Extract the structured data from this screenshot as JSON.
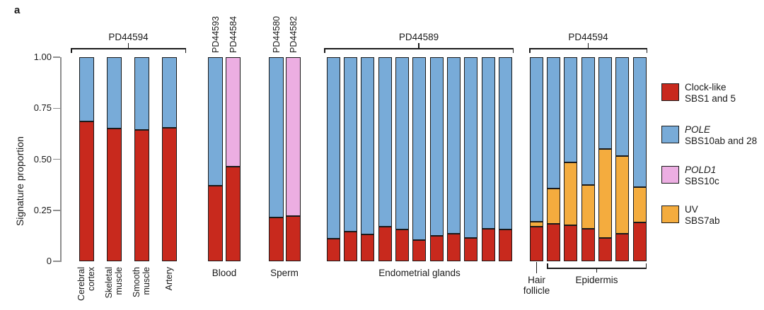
{
  "panel_label": "a",
  "colors": {
    "clock": "#C8291D",
    "pole": "#78ABD8",
    "pold1": "#ECAEE2",
    "uv": "#F4AC3E",
    "axis": "#8F8F8F",
    "ink": "#1A1A1A"
  },
  "chart_data": {
    "type": "bar",
    "stacked": true,
    "title": "",
    "ylabel": "Signature proportion",
    "xlabel": "",
    "ylim": [
      0,
      1
    ],
    "grid": false,
    "stack_order_bottom_to_top": [
      "clock",
      "uv",
      "pole",
      "pold1"
    ],
    "yticks": [
      {
        "v": 1.0,
        "label": "1.00"
      },
      {
        "v": 0.75,
        "label": "0.75"
      },
      {
        "v": 0.5,
        "label": "0.50"
      },
      {
        "v": 0.25,
        "label": "0.25"
      },
      {
        "v": 0,
        "label": "0"
      }
    ],
    "legend": {
      "position": "right",
      "items": [
        {
          "key": "clock",
          "line1": "Clock-like",
          "line1_italic": false,
          "line2": "SBS1 and 5",
          "color": "#C8291D"
        },
        {
          "key": "pole",
          "line1": "POLE",
          "line1_italic": true,
          "line2": "SBS10ab and 28",
          "color": "#78ABD8"
        },
        {
          "key": "pold1",
          "line1": "POLD1",
          "line1_italic": true,
          "line2": "SBS10c",
          "color": "#ECAEE2"
        },
        {
          "key": "uv",
          "line1": "UV",
          "line1_italic": false,
          "line2": "SBS7ab",
          "color": "#F4AC3E"
        }
      ]
    },
    "groups": [
      {
        "id": "pd44594-tissues",
        "bracket_label": "PD44594",
        "bars": [
          {
            "tick_label": "Cerebral\ncortex",
            "segments": {
              "clock": 0.685,
              "pole": 0.315
            }
          },
          {
            "tick_label": "Skeletal\nmuscle",
            "segments": {
              "clock": 0.65,
              "pole": 0.35
            }
          },
          {
            "tick_label": "Smooth\nmuscle",
            "segments": {
              "clock": 0.645,
              "pole": 0.355
            }
          },
          {
            "tick_label": "Artery",
            "segments": {
              "clock": 0.655,
              "pole": 0.345
            }
          }
        ]
      },
      {
        "id": "blood",
        "group_label": "Blood",
        "bars": [
          {
            "top_label": "PD44593",
            "segments": {
              "clock": 0.37,
              "pole": 0.63
            }
          },
          {
            "top_label": "PD44584",
            "segments": {
              "clock": 0.465,
              "pold1": 0.535
            }
          }
        ]
      },
      {
        "id": "sperm",
        "group_label": "Sperm",
        "bars": [
          {
            "top_label": "PD44580",
            "segments": {
              "clock": 0.215,
              "pole": 0.785
            }
          },
          {
            "top_label": "PD44582",
            "segments": {
              "clock": 0.22,
              "pold1": 0.78
            }
          }
        ]
      },
      {
        "id": "pd44589-endometrium",
        "bracket_label": "PD44589",
        "group_label": "Endometrial glands",
        "bars": [
          {
            "segments": {
              "clock": 0.11,
              "pole": 0.89
            }
          },
          {
            "segments": {
              "clock": 0.145,
              "pole": 0.855
            }
          },
          {
            "segments": {
              "clock": 0.13,
              "pole": 0.87
            }
          },
          {
            "segments": {
              "clock": 0.17,
              "pole": 0.83
            }
          },
          {
            "segments": {
              "clock": 0.155,
              "pole": 0.845
            }
          },
          {
            "segments": {
              "clock": 0.105,
              "pole": 0.895
            }
          },
          {
            "segments": {
              "clock": 0.125,
              "pole": 0.875
            }
          },
          {
            "segments": {
              "clock": 0.135,
              "pole": 0.865
            }
          },
          {
            "segments": {
              "clock": 0.115,
              "pole": 0.885
            }
          },
          {
            "segments": {
              "clock": 0.16,
              "pole": 0.84
            }
          },
          {
            "segments": {
              "clock": 0.155,
              "pole": 0.845
            }
          }
        ]
      },
      {
        "id": "pd44594-skin",
        "bracket_label": "PD44594",
        "sub_groups": [
          {
            "label": "Hair\nfollicle"
          },
          {
            "label": "Epidermis"
          }
        ],
        "bars": [
          {
            "segments": {
              "clock": 0.17,
              "uv": 0.025,
              "pole": 0.805
            }
          },
          {
            "segments": {
              "clock": 0.185,
              "uv": 0.17,
              "pole": 0.645
            }
          },
          {
            "segments": {
              "clock": 0.175,
              "uv": 0.31,
              "pole": 0.515
            }
          },
          {
            "segments": {
              "clock": 0.16,
              "uv": 0.215,
              "pole": 0.625
            }
          },
          {
            "segments": {
              "clock": 0.115,
              "uv": 0.435,
              "pole": 0.45
            }
          },
          {
            "segments": {
              "clock": 0.135,
              "uv": 0.38,
              "pole": 0.485
            }
          },
          {
            "segments": {
              "clock": 0.19,
              "uv": 0.175,
              "pole": 0.635
            }
          }
        ]
      }
    ]
  }
}
